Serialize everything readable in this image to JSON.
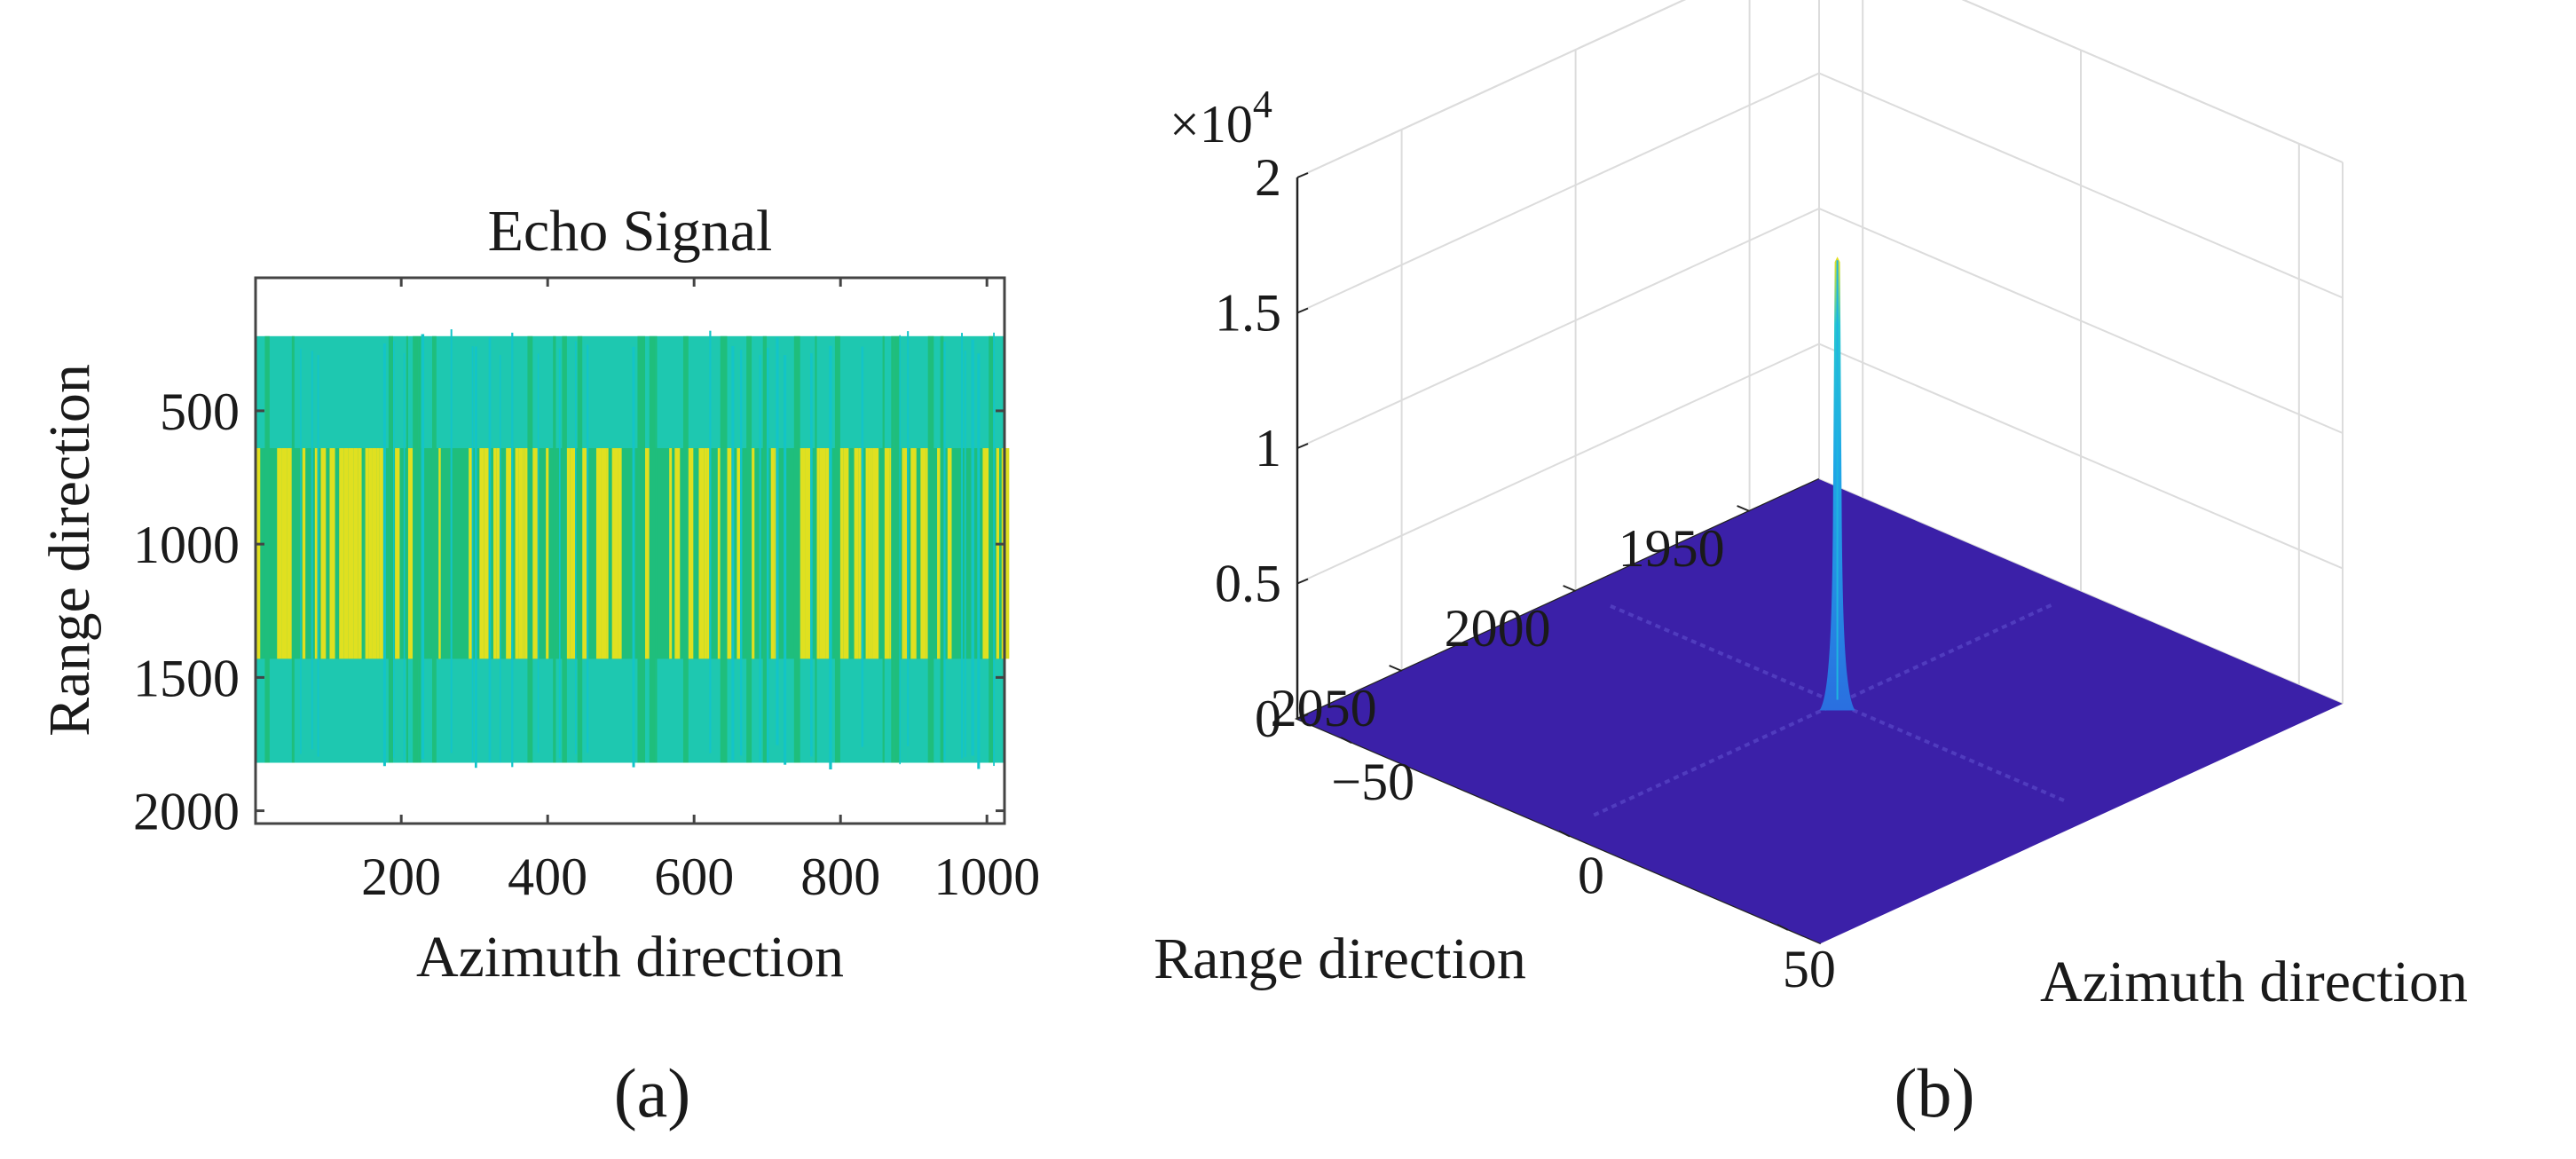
{
  "chart_data": [
    {
      "type": "heatmap",
      "panel_label": "(a)",
      "title": "Echo Signal",
      "xlabel": "Azimuth direction",
      "ylabel": "Range direction",
      "xlim": [
        1,
        1024
      ],
      "ylim": [
        2048,
        1
      ],
      "xticks": [
        200,
        400,
        600,
        800,
        1000
      ],
      "yticks": [
        500,
        1000,
        1500,
        2000
      ],
      "grid": false,
      "signal_band": {
        "outer_range_min": 220,
        "outer_range_max": 1820,
        "inner_range_min": 640,
        "inner_range_max": 1430
      },
      "colors": {
        "background": "#ffffff",
        "outer": "#1ec8b0",
        "middle": "#1fbe7c",
        "inner": "#e0e020",
        "edge": "#13c4c8"
      }
    },
    {
      "type": "surface",
      "panel_label": "(b)",
      "xlabel": "Azimuth direction",
      "ylabel": "Range direction",
      "zlabel": "",
      "xlim": [
        -60,
        60
      ],
      "ylim": [
        1930,
        2080
      ],
      "zlim": [
        0,
        20000
      ],
      "xticks": [
        -50,
        0,
        50
      ],
      "yticks": [
        1950,
        2000,
        2050
      ],
      "zticks": [
        0,
        0.5,
        1,
        1.5,
        2
      ],
      "z_multiplier": "×10",
      "z_exponent": "4",
      "grid": true,
      "peak": {
        "azimuth": 0,
        "range": 2000,
        "value": 16500
      },
      "floor_value": 0,
      "colors": {
        "floor": "#3b20a8",
        "peak_low": "#2a6fe0",
        "peak_mid": "#1fb0e0",
        "peak_top": "#e8e020",
        "grid": "#dcdcdc",
        "axis": "#222222"
      }
    }
  ]
}
